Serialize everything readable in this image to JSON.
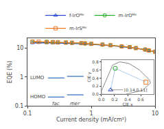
{
  "chart_data": [
    {
      "type": "line",
      "log": true,
      "xlabel": "Current density (mA/cm²)",
      "ylabel": "EQE (%)",
      "xlim": [
        0.1,
        10
      ],
      "ylim": [
        0.1,
        22
      ],
      "xticks": [
        0.1,
        1,
        10
      ],
      "yticks": [
        0.1,
        1,
        10
      ],
      "grid": false,
      "legend": "top",
      "background": "#ffffff",
      "series": [
        {
          "name": "f-IrOᴹᵉ",
          "color": "#2244cc",
          "marker": "triangle",
          "x": [
            0.12,
            0.15,
            0.2,
            0.25,
            0.3,
            0.4,
            0.5,
            0.7,
            0.8,
            1.0,
            1.5,
            2.0,
            3.0,
            4.0,
            5.0,
            7.0,
            8.0,
            10.0
          ],
          "values": [
            15.2,
            15.5,
            15.3,
            15.1,
            15.0,
            14.7,
            14.5,
            14.1,
            13.9,
            13.5,
            12.8,
            12.2,
            11.2,
            10.5,
            9.8,
            8.8,
            8.2,
            7.5
          ]
        },
        {
          "name": "m-IrOᴹᵉ",
          "color": "#22aa22",
          "marker": "circle",
          "x": [
            0.12,
            0.2,
            0.25,
            0.3,
            0.4,
            0.5,
            0.7,
            0.8,
            1.0,
            1.5,
            2.0,
            3.0,
            4.0,
            5.0,
            7.0,
            8.0,
            10.0
          ],
          "values": [
            16.5,
            16.2,
            16.0,
            15.8,
            15.5,
            15.2,
            14.8,
            14.5,
            14.0,
            13.2,
            12.5,
            11.5,
            10.7,
            10.0,
            8.9,
            8.2,
            7.5
          ]
        },
        {
          "name": "m-IrSᴹᵉ",
          "color": "#ee7722",
          "marker": "square",
          "x": [
            0.12,
            0.15,
            0.2,
            0.25,
            0.3,
            0.4,
            0.5,
            0.7,
            0.8,
            1.0,
            1.5,
            2.0,
            3.0,
            4.0,
            5.0,
            7.0,
            8.0,
            10.0
          ],
          "values": [
            16.8,
            16.6,
            16.4,
            16.2,
            16.0,
            15.7,
            15.4,
            14.9,
            14.6,
            14.1,
            13.3,
            12.6,
            11.5,
            10.8,
            10.0,
            8.9,
            8.3,
            7.5
          ]
        }
      ],
      "levels": [
        {
          "label": "LUMO",
          "values": [
            0.92,
            1.05
          ]
        },
        {
          "label": "HOMO",
          "values": [
            0.2,
            0.24
          ]
        }
      ],
      "level_names": [
        "fac",
        "mer"
      ],
      "level_color": "#5588cc"
    },
    {
      "type": "scatter",
      "xlabel": "CIE x",
      "ylabel": "CIE y",
      "xlim": [
        0,
        0.8
      ],
      "ylim": [
        0,
        0.85
      ],
      "xticks": [
        {
          "value": 0,
          "label": "0.0"
        },
        0.2,
        0.4,
        0.6
      ],
      "yticks": [
        {
          "value": 0,
          "label": "0.0"
        },
        0.2,
        0.4,
        0.6,
        0.8
      ],
      "grid": false,
      "background": "#f0f0ee",
      "link_color": "#aaccee",
      "series": [
        {
          "type": "line",
          "color": "#888888",
          "x": [
            0.0,
            0.0,
            0.08,
            0.17,
            0.28,
            0.42,
            0.58,
            0.73,
            0.75,
            0.63,
            0.37,
            0.18,
            0.0
          ],
          "values": [
            0.0,
            0.08,
            0.38,
            0.72,
            0.8,
            0.76,
            0.6,
            0.36,
            0.28,
            0.1,
            0.0,
            0.0,
            0.0
          ]
        },
        {
          "type": "scatter",
          "color": "#2244cc",
          "marker": "triangle",
          "x": [
            0.14
          ],
          "values": [
            0.11
          ]
        },
        {
          "type": "scatter",
          "color": "#22aa22",
          "marker": "circle",
          "x": [
            0.21
          ],
          "values": [
            0.64
          ]
        },
        {
          "type": "scatter",
          "color": "#ee7722",
          "marker": "square",
          "x": [
            0.68
          ],
          "values": [
            0.3
          ]
        }
      ],
      "annotations": [
        {
          "text": "[0.14,0.11]",
          "x": 0.14,
          "y": 0.11
        }
      ]
    }
  ]
}
